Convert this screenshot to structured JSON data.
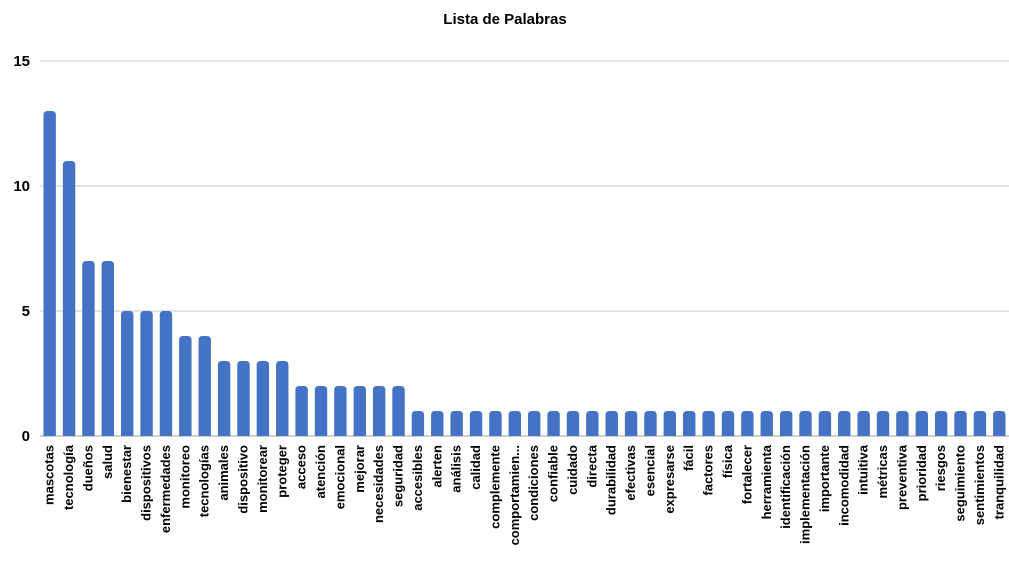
{
  "chart_data": {
    "type": "bar",
    "title": "Lista de Palabras",
    "xlabel": "",
    "ylabel": "",
    "ylim": [
      0,
      15
    ],
    "yticks": [
      0,
      5,
      10,
      15
    ],
    "grid": true,
    "legend": "none",
    "bar_color": "#4472c4",
    "categories": [
      "mascotas",
      "tecnología",
      "dueños",
      "salud",
      "bienestar",
      "dispositivos",
      "enfermedades",
      "monitoreo",
      "tecnologías",
      "animales",
      "dispositivo",
      "monitorear",
      "proteger",
      "acceso",
      "atención",
      "emocional",
      "mejorar",
      "necesidades",
      "seguridad",
      "accesibles",
      "alerten",
      "análisis",
      "calidad",
      "complemente",
      "comportamien...",
      "condiciones",
      "confiable",
      "cuidado",
      "directa",
      "durabilidad",
      "efectivas",
      "esencial",
      "expresarse",
      "fácil",
      "factores",
      "física",
      "fortalecer",
      "herramienta",
      "identificación",
      "implementación",
      "importante",
      "incomodidad",
      "intuitiva",
      "métricas",
      "preventiva",
      "prioridad",
      "riesgos",
      "seguimiento",
      "sentimientos",
      "tranquilidad"
    ],
    "values": [
      13,
      11,
      7,
      7,
      5,
      5,
      5,
      4,
      4,
      3,
      3,
      3,
      3,
      2,
      2,
      2,
      2,
      2,
      2,
      1,
      1,
      1,
      1,
      1,
      1,
      1,
      1,
      1,
      1,
      1,
      1,
      1,
      1,
      1,
      1,
      1,
      1,
      1,
      1,
      1,
      1,
      1,
      1,
      1,
      1,
      1,
      1,
      1,
      1,
      1
    ]
  }
}
